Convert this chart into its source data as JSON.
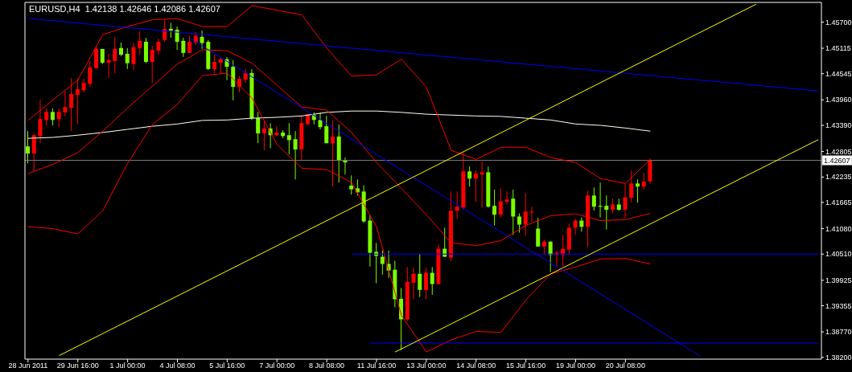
{
  "chart_data": {
    "type": "candlestick",
    "title": "EURUSD,H4  1.42138 1.42646 1.42086 1.42607",
    "categories": [
      "28 Jun 2011",
      null,
      null,
      null,
      null,
      null,
      null,
      null,
      "29 Jun 16:00",
      null,
      null,
      null,
      null,
      null,
      null,
      null,
      "1 Jul 00:00",
      null,
      null,
      null,
      null,
      null,
      null,
      null,
      "4 Jul 08:00",
      null,
      null,
      null,
      null,
      null,
      null,
      null,
      "5 Jul 16:00",
      null,
      null,
      null,
      null,
      null,
      null,
      null,
      "7 Jul 00:00",
      null,
      null,
      null,
      null,
      null,
      null,
      null,
      "8 Jul 08:00",
      null,
      null,
      null,
      null,
      null,
      null,
      null,
      "11 Jul 16:00",
      null,
      null,
      null,
      null,
      null,
      null,
      null,
      "13 Jul 00:00",
      null,
      null,
      null,
      null,
      null,
      null,
      null,
      "14 Jul 08:00",
      null,
      null,
      null,
      null,
      null,
      null,
      null,
      "15 Jul 16:00",
      null,
      null,
      null,
      null,
      null,
      null,
      null,
      "19 Jul 00:00",
      null,
      null,
      null,
      null,
      null,
      null,
      null,
      "20 Jul 08:00",
      null,
      null,
      null,
      null,
      null,
      null,
      null,
      null,
      null,
      null,
      null,
      null,
      null,
      null,
      null,
      null,
      null,
      null,
      null,
      null,
      null,
      null,
      null,
      null,
      null,
      null,
      null,
      null,
      null,
      null,
      null
    ],
    "ohlc": [
      [
        1.4292,
        1.4326,
        1.4254,
        1.4276
      ],
      [
        1.4276,
        1.4321,
        1.4236,
        1.4317
      ],
      [
        1.4315,
        1.4396,
        1.4299,
        1.4353
      ],
      [
        1.4351,
        1.4377,
        1.4339,
        1.4369
      ],
      [
        1.4369,
        1.4377,
        1.4339,
        1.4351
      ],
      [
        1.4353,
        1.4377,
        1.4335,
        1.4369
      ],
      [
        1.4368,
        1.4416,
        1.4359,
        1.438
      ],
      [
        1.4378,
        1.4445,
        1.4326,
        1.4409
      ],
      [
        1.4407,
        1.4443,
        1.4342,
        1.442
      ],
      [
        1.4418,
        1.4443,
        1.4413,
        1.4434
      ],
      [
        1.4432,
        1.4483,
        1.4425,
        1.4469
      ],
      [
        1.4467,
        1.4517,
        1.4467,
        1.451
      ],
      [
        1.451,
        1.451,
        1.4476,
        1.4479
      ],
      [
        1.4479,
        1.4499,
        1.4445,
        1.4485
      ],
      [
        1.4483,
        1.4537,
        1.4456,
        1.451
      ],
      [
        1.4512,
        1.4524,
        1.4494,
        1.4497
      ],
      [
        1.4499,
        1.4512,
        1.4465,
        1.4478
      ],
      [
        1.4476,
        1.4524,
        1.4463,
        1.4514
      ],
      [
        1.4512,
        1.455,
        1.4497,
        1.4528
      ],
      [
        1.4526,
        1.4535,
        1.4478,
        1.4481
      ],
      [
        1.4481,
        1.4517,
        1.4434,
        1.4508
      ],
      [
        1.4506,
        1.4533,
        1.4496,
        1.4526
      ],
      [
        1.453,
        1.4577,
        1.4526,
        1.4555
      ],
      [
        1.4555,
        1.4568,
        1.4535,
        1.4551
      ],
      [
        1.4553,
        1.456,
        1.4508,
        1.4526
      ],
      [
        1.4528,
        1.4535,
        1.4492,
        1.4501
      ],
      [
        1.4501,
        1.4539,
        1.4501,
        1.4526
      ],
      [
        1.4524,
        1.4548,
        1.4519,
        1.4539
      ],
      [
        1.4537,
        1.4551,
        1.451,
        1.4523
      ],
      [
        1.4526,
        1.453,
        1.4463,
        1.4465
      ],
      [
        1.4465,
        1.4497,
        1.4456,
        1.4481
      ],
      [
        1.4479,
        1.4492,
        1.4454,
        1.4487
      ],
      [
        1.4487,
        1.4492,
        1.444,
        1.447
      ],
      [
        1.447,
        1.4485,
        1.4395,
        1.4425
      ],
      [
        1.4425,
        1.4449,
        1.4413,
        1.4443
      ],
      [
        1.4441,
        1.4465,
        1.4434,
        1.4456
      ],
      [
        1.4456,
        1.4465,
        1.4351,
        1.4355
      ],
      [
        1.4355,
        1.4369,
        1.4299,
        1.4321
      ],
      [
        1.4321,
        1.435,
        1.4283,
        1.4332
      ],
      [
        1.4332,
        1.4344,
        1.4288,
        1.4317
      ],
      [
        1.4317,
        1.4337,
        1.4315,
        1.4323
      ],
      [
        1.4323,
        1.4328,
        1.431,
        1.4315
      ],
      [
        1.4317,
        1.4344,
        1.4274,
        1.4306
      ],
      [
        1.4308,
        1.4326,
        1.4218,
        1.4285
      ],
      [
        1.4285,
        1.4362,
        1.426,
        1.4344
      ],
      [
        1.4342,
        1.4364,
        1.4339,
        1.4364
      ],
      [
        1.4362,
        1.4368,
        1.4341,
        1.4351
      ],
      [
        1.4351,
        1.4368,
        1.433,
        1.4335
      ],
      [
        1.4337,
        1.436,
        1.4299,
        1.4299
      ],
      [
        1.4299,
        1.435,
        1.4202,
        1.4314
      ],
      [
        1.4314,
        1.4341,
        1.4211,
        1.4261
      ],
      [
        1.4261,
        1.4267,
        1.4229,
        1.4256
      ],
      [
        1.4204,
        1.4227,
        1.4184,
        1.4196
      ],
      [
        1.4198,
        1.4218,
        1.4182,
        1.4189
      ],
      [
        1.4191,
        1.4205,
        1.4121,
        1.4124
      ],
      [
        1.4126,
        1.4137,
        1.4023,
        1.4054
      ],
      [
        1.4056,
        1.4076,
        1.3986,
        1.4047
      ],
      [
        1.4045,
        1.4059,
        1.4005,
        1.4029
      ],
      [
        1.4029,
        1.4059,
        1.3998,
        1.4014
      ],
      [
        1.4016,
        1.4036,
        1.3932,
        1.395
      ],
      [
        1.3951,
        1.3975,
        1.3836,
        1.3905
      ],
      [
        1.3905,
        1.4022,
        1.3901,
        1.3989
      ],
      [
        1.3987,
        1.402,
        1.395,
        1.4007
      ],
      [
        1.4007,
        1.4052,
        1.3955,
        1.3971
      ],
      [
        1.3971,
        1.402,
        1.395,
        1.4009
      ],
      [
        1.4009,
        1.4022,
        1.396,
        1.3984
      ],
      [
        1.3984,
        1.4074,
        1.3984,
        1.4063
      ],
      [
        1.4063,
        1.411,
        1.4045,
        1.4045
      ],
      [
        1.4043,
        1.4191,
        1.4036,
        1.4148
      ],
      [
        1.4148,
        1.4191,
        1.413,
        1.4157
      ],
      [
        1.4155,
        1.4278,
        1.4151,
        1.4236
      ],
      [
        1.4236,
        1.4247,
        1.4202,
        1.422
      ],
      [
        1.422,
        1.4238,
        1.4168,
        1.4231
      ],
      [
        1.4229,
        1.4258,
        1.4155,
        1.4234
      ],
      [
        1.4234,
        1.4247,
        1.4155,
        1.4157
      ],
      [
        1.4159,
        1.4195,
        1.4115,
        1.4139
      ],
      [
        1.4139,
        1.4198,
        1.4133,
        1.4169
      ],
      [
        1.4168,
        1.4191,
        1.4162,
        1.4173
      ],
      [
        1.4175,
        1.4195,
        1.4094,
        1.4135
      ],
      [
        1.4135,
        1.4142,
        1.4099,
        1.4117
      ],
      [
        1.4117,
        1.4187,
        1.4092,
        1.4146
      ],
      [
        1.4144,
        1.4157,
        1.4124,
        1.4146
      ],
      [
        1.4108,
        1.4132,
        1.4068,
        1.4068
      ],
      [
        1.4068,
        1.4083,
        1.405,
        1.4079
      ],
      [
        1.4079,
        1.4079,
        1.4011,
        1.4049
      ],
      [
        1.4049,
        1.4058,
        1.4023,
        1.4054
      ],
      [
        1.4049,
        1.4094,
        1.4023,
        1.4063
      ],
      [
        1.4061,
        1.4119,
        1.405,
        1.411
      ],
      [
        1.411,
        1.413,
        1.4094,
        1.4126
      ],
      [
        1.4126,
        1.4133,
        1.4101,
        1.4112
      ],
      [
        1.4112,
        1.4193,
        1.4067,
        1.4182
      ],
      [
        1.4182,
        1.42,
        1.4148,
        1.4157
      ],
      [
        1.4159,
        1.4211,
        1.4133,
        1.4157
      ],
      [
        1.4159,
        1.4182,
        1.4106,
        1.415
      ],
      [
        1.415,
        1.4175,
        1.4142,
        1.4162
      ],
      [
        1.4162,
        1.4175,
        1.4148,
        1.415
      ],
      [
        1.415,
        1.4209,
        1.4132,
        1.4178
      ],
      [
        1.4177,
        1.4238,
        1.4166,
        1.4209
      ],
      [
        1.4209,
        1.4218,
        1.4166,
        1.4202
      ],
      [
        1.4202,
        1.4233,
        1.4196,
        1.4213
      ],
      [
        1.42138,
        1.42646,
        1.42086,
        1.42607
      ],
      null,
      null,
      null,
      null,
      null,
      null,
      null,
      null,
      null,
      null,
      null,
      null,
      null,
      null,
      null,
      null,
      null,
      null,
      null,
      null,
      null,
      null,
      null,
      null,
      null,
      null,
      null
    ],
    "colors": [
      "#7cfc00",
      "#ff0000",
      "#ff0000",
      "#ff0000",
      "#7cfc00",
      "#ff0000",
      "#ff0000",
      "#ff0000",
      "#ff0000",
      "#ff0000",
      "#ff0000",
      "#ff0000",
      "#7cfc00",
      "#ff0000",
      "#ff0000",
      "#7cfc00",
      "#7cfc00",
      "#ff0000",
      "#ff0000",
      "#7cfc00",
      "#ff0000",
      "#ff0000",
      "#ff0000",
      "#7cfc00",
      "#7cfc00",
      "#7cfc00",
      "#ff0000",
      "#ff0000",
      "#7cfc00",
      "#7cfc00",
      "#ff0000",
      "#ff0000",
      "#7cfc00",
      "#7cfc00",
      "#ff0000",
      "#ff0000",
      "#7cfc00",
      "#7cfc00",
      "#ff0000",
      "#7cfc00",
      "#ff0000",
      "#7cfc00",
      "#7cfc00",
      "#7cfc00",
      "#ff0000",
      "#ff0000",
      "#7cfc00",
      "#7cfc00",
      "#7cfc00",
      "#ff0000",
      "#7cfc00",
      "#7cfc00",
      "#7cfc00",
      "#7cfc00",
      "#7cfc00",
      "#7cfc00",
      "#7cfc00",
      "#7cfc00",
      "#7cfc00",
      "#7cfc00",
      "#7cfc00",
      "#ff0000",
      "#ff0000",
      "#7cfc00",
      "#ff0000",
      "#7cfc00",
      "#ff0000",
      "#7cfc00",
      "#ff0000",
      "#ff0000",
      "#ff0000",
      "#7cfc00",
      "#ff0000",
      "#ff0000",
      "#7cfc00",
      "#7cfc00",
      "#ff0000",
      "#ff0000",
      "#7cfc00",
      "#7cfc00",
      "#ff0000",
      "#ff0000",
      "#7cfc00",
      "#ff0000",
      "#7cfc00",
      "#ff0000",
      "#ff0000",
      "#ff0000",
      "#ff0000",
      "#7cfc00",
      "#ff0000",
      "#7cfc00",
      "#7cfc00",
      "#7cfc00",
      "#ff0000",
      "#7cfc00",
      "#ff0000",
      "#ff0000",
      "#7cfc00",
      "#ff0000",
      "#ff0000",
      null,
      null,
      null,
      null,
      null,
      null,
      null,
      null,
      null,
      null,
      null,
      null,
      null,
      null,
      null,
      null,
      null,
      null,
      null,
      null,
      null,
      null,
      null,
      null,
      null,
      null,
      null
    ],
    "series": [
      {
        "type": "line",
        "color": "#fffff0",
        "values": [
          1.431,
          null,
          null,
          null,
          1.4312,
          null,
          null,
          null,
          1.4317,
          null,
          null,
          null,
          1.4323,
          null,
          null,
          null,
          1.433,
          null,
          null,
          null,
          1.4337,
          null,
          null,
          null,
          1.4342,
          null,
          null,
          null,
          1.435,
          null,
          null,
          null,
          1.4351,
          null,
          null,
          null,
          1.4355,
          null,
          null,
          null,
          1.4357,
          null,
          null,
          null,
          1.436,
          null,
          null,
          null,
          1.4368,
          null,
          null,
          null,
          1.4371,
          null,
          null,
          null,
          1.4371,
          null,
          null,
          null,
          1.4368,
          null,
          null,
          null,
          1.4364,
          null,
          null,
          null,
          1.4362,
          null,
          null,
          null,
          1.436,
          null,
          null,
          null,
          1.4359,
          null,
          null,
          null,
          1.4355,
          null,
          null,
          null,
          1.4351,
          null,
          null,
          null,
          1.4342,
          null,
          null,
          null,
          1.4339,
          null,
          null,
          null,
          1.4333,
          null,
          null,
          null,
          1.4326,
          null,
          null,
          null,
          null,
          null,
          null,
          null,
          null,
          null,
          null,
          null,
          null,
          null,
          null,
          null,
          null,
          null,
          null,
          null,
          null,
          null,
          null,
          null,
          null,
          null,
          null,
          null
        ]
      },
      {
        "type": "line",
        "color": "#ff0000",
        "values": [
          1.435,
          null,
          null,
          null,
          1.4396,
          null,
          null,
          null,
          1.444,
          null,
          null,
          null,
          1.4542,
          null,
          null,
          null,
          1.456,
          null,
          null,
          null,
          1.4575,
          null,
          null,
          null,
          1.4578,
          null,
          null,
          null,
          1.456,
          null,
          null,
          null,
          1.456,
          null,
          null,
          null,
          1.4607,
          null,
          null,
          null,
          null,
          null,
          null,
          null,
          1.4586,
          null,
          null,
          null,
          1.4512,
          null,
          null,
          null,
          1.4449,
          null,
          null,
          null,
          1.4452,
          null,
          null,
          null,
          1.4487,
          null,
          null,
          null,
          1.4425,
          null,
          null,
          null,
          1.4283,
          null,
          null,
          null,
          1.4263,
          null,
          null,
          null,
          1.429,
          null,
          null,
          null,
          1.429,
          null,
          null,
          null,
          1.4267,
          null,
          null,
          null,
          1.4256,
          null,
          null,
          null,
          1.422,
          null,
          null,
          null,
          1.4209,
          null,
          null,
          null,
          1.4263,
          null,
          null,
          null,
          null,
          null,
          null,
          null,
          null,
          null,
          null,
          null,
          null,
          null,
          null,
          null,
          null,
          null,
          null,
          null,
          null,
          null,
          null,
          null,
          null,
          null,
          null,
          null
        ]
      },
      {
        "type": "line",
        "color": "#ff0000",
        "values": [
          1.4231,
          null,
          null,
          null,
          1.4252,
          null,
          null,
          null,
          1.4278,
          null,
          null,
          null,
          1.4326,
          null,
          null,
          null,
          1.4378,
          null,
          null,
          null,
          1.4427,
          null,
          null,
          null,
          1.4476,
          null,
          null,
          null,
          1.4508,
          null,
          null,
          null,
          1.4506,
          null,
          null,
          null,
          1.4478,
          null,
          null,
          null,
          1.4429,
          null,
          null,
          null,
          1.438,
          null,
          null,
          null,
          1.4373,
          null,
          null,
          null,
          1.4323,
          null,
          null,
          null,
          1.4256,
          null,
          null,
          null,
          1.4198,
          null,
          null,
          null,
          1.4139,
          null,
          null,
          null,
          1.4076,
          null,
          null,
          null,
          1.407,
          null,
          null,
          null,
          1.4081,
          null,
          null,
          null,
          1.4115,
          null,
          null,
          null,
          1.4137,
          null,
          null,
          null,
          1.4141,
          null,
          null,
          null,
          1.4126,
          null,
          null,
          null,
          1.4128,
          null,
          null,
          null,
          1.4142,
          null,
          null,
          null,
          null,
          null,
          null,
          null,
          null,
          null,
          null,
          null,
          null,
          null,
          null,
          null,
          null,
          null,
          null,
          null,
          null,
          null,
          null,
          null,
          null,
          null,
          null,
          null
        ]
      },
      {
        "type": "line",
        "color": "#ff0000",
        "values": [
          1.4112,
          null,
          null,
          null,
          1.4108,
          null,
          null,
          null,
          1.4096,
          null,
          null,
          null,
          1.4148,
          null,
          null,
          null,
          1.4254,
          null,
          null,
          null,
          1.4341,
          null,
          null,
          null,
          1.4386,
          null,
          null,
          null,
          1.445,
          null,
          null,
          null,
          1.4456,
          null,
          null,
          null,
          1.44,
          null,
          null,
          null,
          1.4296,
          null,
          null,
          null,
          1.4243,
          null,
          null,
          null,
          1.424,
          null,
          null,
          null,
          1.4211,
          null,
          null,
          null,
          1.4112,
          null,
          null,
          null,
          1.3914,
          null,
          null,
          null,
          1.3832,
          null,
          null,
          null,
          1.3859,
          null,
          null,
          null,
          1.3878,
          null,
          null,
          null,
          1.3876,
          null,
          null,
          null,
          1.3948,
          null,
          null,
          null,
          1.4007,
          null,
          null,
          null,
          1.4022,
          null,
          null,
          null,
          1.404,
          null,
          null,
          null,
          1.4041,
          null,
          null,
          null,
          1.4029,
          null,
          null,
          null,
          null,
          null,
          null,
          null,
          null,
          null,
          null,
          null,
          null,
          null,
          null,
          null,
          null,
          null,
          null,
          null,
          null,
          null,
          null,
          null,
          null,
          null,
          null,
          null
        ]
      },
      {
        "type": "line",
        "color": "#0000ff",
        "values": [
          1.4578,
          null,
          null,
          null,
          null,
          null,
          null,
          null,
          null,
          null,
          null,
          null,
          null,
          null,
          null,
          null,
          null,
          null,
          null,
          null,
          null,
          null,
          null,
          null,
          null,
          null,
          null,
          null,
          null,
          null,
          null,
          null,
          null,
          null,
          null,
          null,
          null,
          null,
          null,
          null,
          null,
          null,
          null,
          null,
          null,
          null,
          null,
          null,
          null,
          null,
          null,
          null,
          null,
          null,
          null,
          null,
          null,
          null,
          null,
          null,
          null,
          null,
          null,
          null,
          null,
          null,
          null,
          null,
          null,
          null,
          null,
          null,
          null,
          null,
          null,
          null,
          null,
          null,
          null,
          null,
          null,
          null,
          null,
          null,
          null,
          null,
          null,
          null,
          null,
          null,
          null,
          null,
          null,
          null,
          null,
          null,
          null,
          null,
          null,
          null,
          null,
          null,
          null,
          null,
          null,
          null,
          null,
          null,
          null,
          null,
          null,
          null,
          null,
          null,
          null,
          null,
          null,
          null,
          null,
          null,
          null,
          null,
          null,
          null,
          null,
          null,
          null,
          1.4416
        ]
      },
      {
        "type": "line",
        "color": "#0000ff",
        "values": [
          null,
          null,
          null,
          null,
          null,
          null,
          null,
          null,
          null,
          null,
          null,
          null,
          null,
          null,
          null,
          null,
          null,
          null,
          null,
          null,
          null,
          null,
          null,
          null,
          null,
          null,
          1.4534,
          null,
          null,
          null,
          null,
          null,
          null,
          null,
          null,
          null,
          null,
          null,
          null,
          null,
          null,
          null,
          null,
          null,
          null,
          null,
          null,
          null,
          null,
          null,
          null,
          null,
          null,
          null,
          null,
          null,
          null,
          null,
          null,
          null,
          null,
          null,
          null,
          null,
          null,
          null,
          null,
          null,
          null,
          null,
          null,
          null,
          null,
          null,
          null,
          null,
          null,
          null,
          null,
          null,
          null,
          null,
          null,
          null,
          null,
          null,
          null,
          null,
          null,
          null,
          null,
          null,
          null,
          null,
          null,
          null,
          null,
          null,
          null,
          null,
          null,
          null,
          null,
          null,
          null,
          null,
          null,
          null,
          1.3823,
          null,
          null,
          null,
          null,
          null,
          null,
          null,
          null,
          null,
          null,
          null,
          null,
          null,
          null,
          null,
          null,
          null,
          null,
          null
        ]
      },
      {
        "type": "line",
        "color": "#0000ff",
        "values": [
          null,
          null,
          null,
          null,
          null,
          null,
          null,
          null,
          null,
          null,
          null,
          null,
          null,
          null,
          null,
          null,
          null,
          null,
          null,
          null,
          null,
          null,
          null,
          null,
          null,
          null,
          null,
          null,
          null,
          null,
          null,
          null,
          null,
          null,
          null,
          null,
          null,
          null,
          null,
          null,
          null,
          null,
          null,
          null,
          null,
          null,
          null,
          null,
          null,
          null,
          null,
          null,
          1.4051,
          null,
          null,
          null,
          null,
          null,
          null,
          null,
          null,
          null,
          null,
          null,
          null,
          null,
          null,
          null,
          null,
          null,
          null,
          null,
          null,
          null,
          null,
          null,
          null,
          null,
          null,
          null,
          null,
          null,
          null,
          null,
          null,
          null,
          null,
          null,
          null,
          null,
          null,
          null,
          null,
          null,
          null,
          null,
          null,
          null,
          null,
          null,
          null,
          null,
          null,
          null,
          null,
          null,
          null,
          null,
          null,
          null,
          null,
          null,
          null,
          null,
          null,
          null,
          null,
          null,
          null,
          null,
          null,
          null,
          null,
          null,
          null,
          null,
          null,
          1.4051
        ]
      },
      {
        "type": "line",
        "color": "#0000ff",
        "values": [
          null,
          null,
          null,
          null,
          null,
          null,
          null,
          null,
          null,
          null,
          null,
          null,
          null,
          null,
          null,
          null,
          null,
          null,
          null,
          null,
          null,
          null,
          null,
          null,
          null,
          null,
          null,
          null,
          null,
          null,
          null,
          null,
          null,
          null,
          null,
          null,
          null,
          null,
          null,
          null,
          null,
          null,
          null,
          null,
          null,
          null,
          null,
          null,
          null,
          null,
          null,
          null,
          null,
          null,
          null,
          1.3852,
          null,
          null,
          null,
          null,
          null,
          null,
          null,
          null,
          null,
          null,
          null,
          null,
          null,
          null,
          null,
          null,
          null,
          null,
          null,
          null,
          null,
          null,
          null,
          null,
          null,
          null,
          null,
          null,
          null,
          null,
          null,
          null,
          null,
          null,
          null,
          null,
          null,
          null,
          null,
          null,
          null,
          null,
          null,
          null,
          null,
          null,
          null,
          null,
          null,
          null,
          null,
          null,
          null,
          null,
          null,
          null,
          null,
          null,
          null,
          null,
          null,
          null,
          null,
          null,
          null,
          null,
          null,
          null,
          null,
          null,
          null,
          1.3852
        ]
      },
      {
        "type": "line",
        "color": "#ffff00",
        "values": [
          null,
          null,
          null,
          null,
          null,
          1.3824,
          null,
          null,
          null,
          null,
          null,
          null,
          null,
          null,
          null,
          null,
          null,
          null,
          null,
          null,
          null,
          null,
          null,
          null,
          null,
          null,
          null,
          null,
          null,
          null,
          null,
          null,
          null,
          null,
          null,
          null,
          null,
          null,
          null,
          null,
          null,
          null,
          null,
          null,
          null,
          null,
          null,
          null,
          null,
          null,
          null,
          null,
          null,
          null,
          null,
          null,
          null,
          null,
          null,
          null,
          null,
          null,
          null,
          null,
          null,
          null,
          null,
          null,
          null,
          null,
          null,
          null,
          null,
          null,
          null,
          null,
          null,
          null,
          null,
          null,
          null,
          null,
          null,
          null,
          null,
          null,
          null,
          null,
          null,
          null,
          null,
          null,
          null,
          null,
          null,
          null,
          null,
          null,
          null,
          null,
          null,
          null,
          null,
          null,
          null,
          null,
          null,
          null,
          null,
          null,
          null,
          null,
          null,
          null,
          null,
          null,
          null,
          1.461,
          null,
          null,
          null,
          null,
          null,
          null,
          null,
          null,
          null,
          null
        ]
      },
      {
        "type": "line",
        "color": "#ffff00",
        "values": [
          null,
          null,
          null,
          null,
          null,
          null,
          null,
          null,
          null,
          null,
          null,
          null,
          null,
          null,
          null,
          null,
          null,
          null,
          null,
          null,
          null,
          null,
          null,
          null,
          null,
          null,
          null,
          null,
          null,
          null,
          null,
          null,
          null,
          null,
          null,
          null,
          null,
          null,
          null,
          null,
          null,
          null,
          null,
          null,
          null,
          null,
          null,
          null,
          null,
          null,
          null,
          null,
          null,
          null,
          null,
          null,
          null,
          null,
          null,
          1.3832,
          null,
          null,
          null,
          null,
          null,
          null,
          null,
          null,
          null,
          null,
          null,
          null,
          null,
          null,
          null,
          null,
          null,
          null,
          null,
          null,
          null,
          null,
          null,
          null,
          null,
          null,
          null,
          null,
          null,
          null,
          null,
          null,
          null,
          null,
          null,
          null,
          null,
          null,
          null,
          null,
          null,
          null,
          null,
          null,
          null,
          null,
          null,
          null,
          null,
          null,
          null,
          null,
          null,
          null,
          null,
          null,
          null,
          null,
          null,
          null,
          null,
          null,
          null,
          null,
          null,
          null,
          null,
          1.4307
        ]
      }
    ],
    "ylim": [
      1.3816,
      1.4614
    ],
    "yticks": [
      {
        "value": 1.457,
        "label": "1.45700"
      },
      {
        "value": 1.45115,
        "label": "1.45115"
      },
      {
        "value": 1.44545,
        "label": "1.44545"
      },
      {
        "value": 1.4396,
        "label": "1.43960"
      },
      {
        "value": 1.4339,
        "label": "1.43390"
      },
      {
        "value": 1.42805,
        "label": "1.42805"
      },
      {
        "value": 1.42235,
        "label": "1.42235"
      },
      {
        "value": 1.41665,
        "label": "1.41665"
      },
      {
        "value": 1.4108,
        "label": "1.41080"
      },
      {
        "value": 1.4051,
        "label": "1.40510"
      },
      {
        "value": 1.39925,
        "label": "1.39925"
      },
      {
        "value": 1.39355,
        "label": "1.39355"
      },
      {
        "value": 1.3877,
        "label": "1.38770"
      },
      {
        "value": 1.382,
        "label": "1.38200"
      }
    ],
    "ref_lines": [
      {
        "axis": "y",
        "value": 1.42607,
        "label": "1.42607",
        "color": "#808080"
      }
    ],
    "marker": "none"
  }
}
